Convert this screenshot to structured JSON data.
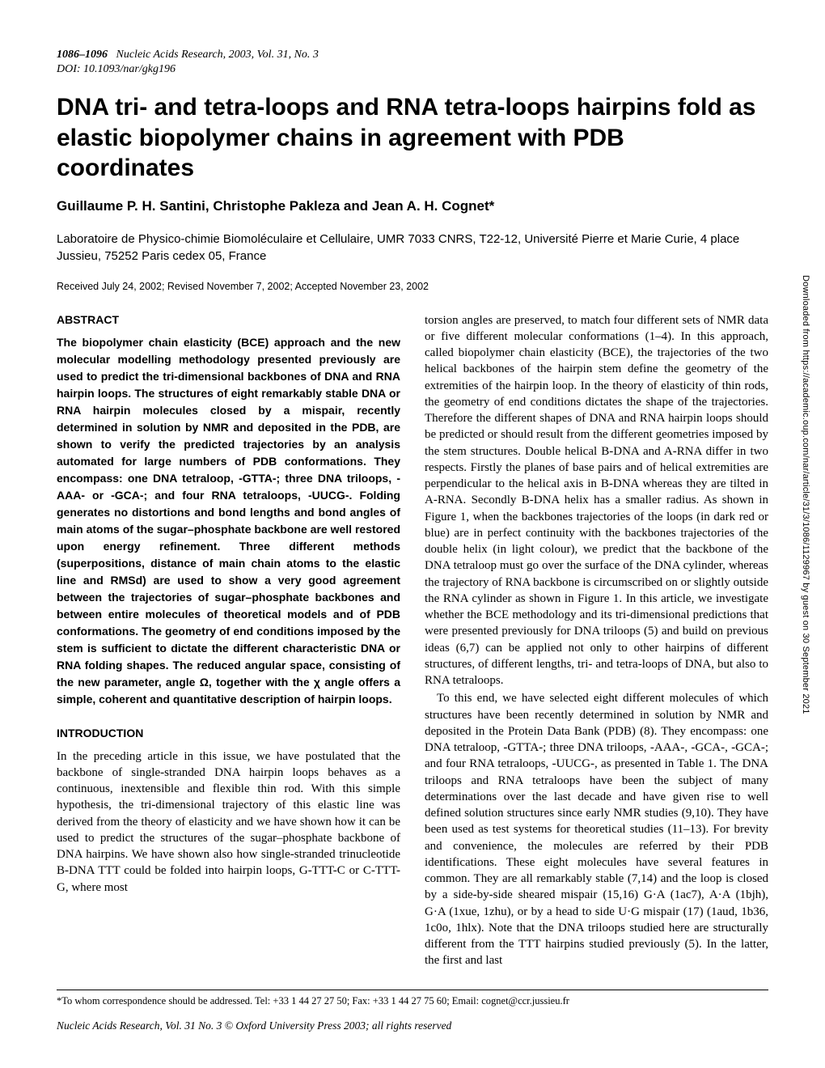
{
  "header": {
    "pages": "1086–1096",
    "journal": "Nucleic Acids Research, 2003, Vol. 31, No. 3",
    "doi": "DOI: 10.1093/nar/gkg196"
  },
  "title": "DNA tri- and tetra-loops and RNA tetra-loops hairpins fold as elastic biopolymer chains in agreement with PDB coordinates",
  "authors": "Guillaume P. H. Santini, Christophe Pakleza and Jean A. H. Cognet*",
  "affiliation": "Laboratoire de Physico-chimie Biomoléculaire et Cellulaire, UMR 7033 CNRS, T22-12, Université Pierre et Marie Curie, 4 place Jussieu, 75252 Paris cedex 05, France",
  "dates": "Received July 24, 2002; Revised November 7, 2002; Accepted November 23, 2002",
  "abstract_heading": "ABSTRACT",
  "abstract_text": "The biopolymer chain elasticity (BCE) approach and the new molecular modelling methodology presented previously are used to predict the tri-dimensional backbones of DNA and RNA hairpin loops. The structures of eight remarkably stable DNA or RNA hairpin molecules closed by a mispair, recently determined in solution by NMR and deposited in the PDB, are shown to verify the predicted trajectories by an analysis automated for large numbers of PDB conformations. They encompass: one DNA tetraloop, -GTTA-; three DNA triloops, -AAA- or -GCA-; and four RNA tetraloops, -UUCG-. Folding generates no distortions and bond lengths and bond angles of main atoms of the sugar–phosphate backbone are well restored upon energy refinement. Three different methods (superpositions, distance of main chain atoms to the elastic line and RMSd) are used to show a very good agreement between the trajectories of sugar–phosphate backbones and between entire molecules of theoretical models and of PDB conformations. The geometry of end conditions imposed by the stem is sufficient to dictate the different characteristic DNA or RNA folding shapes. The reduced angular space, consisting of the new parameter, angle Ω, together with the χ angle offers a simple, coherent and quantitative description of hairpin loops.",
  "intro_heading": "INTRODUCTION",
  "intro_text": "In the preceding article in this issue, we have postulated that the backbone of single-stranded DNA hairpin loops behaves as a continuous, inextensible and flexible thin rod. With this simple hypothesis, the tri-dimensional trajectory of this elastic line was derived from the theory of elasticity and we have shown how it can be used to predict the structures of the sugar–phosphate backbone of DNA hairpins. We have shown also how single-stranded trinucleotide B-DNA TTT could be folded into hairpin loops, G-TTT-C or C-TTT-G, where most",
  "right_col_p1": "torsion angles are preserved, to match four different sets of NMR data or five different molecular conformations (1–4). In this approach, called biopolymer chain elasticity (BCE), the trajectories of the two helical backbones of the hairpin stem define the geometry of the extremities of the hairpin loop. In the theory of elasticity of thin rods, the geometry of end conditions dictates the shape of the trajectories. Therefore the different shapes of DNA and RNA hairpin loops should be predicted or should result from the different geometries imposed by the stem structures. Double helical B-DNA and A-RNA differ in two respects. Firstly the planes of base pairs and of helical extremities are perpendicular to the helical axis in B-DNA whereas they are tilted in A-RNA. Secondly B-DNA helix has a smaller radius. As shown in Figure 1, when the backbones trajectories of the loops (in dark red or blue) are in perfect continuity with the backbones trajectories of the double helix (in light colour), we predict that the backbone of the DNA tetraloop must go over the surface of the DNA cylinder, whereas the trajectory of RNA backbone is circumscribed on or slightly outside the RNA cylinder as shown in Figure 1. In this article, we investigate whether the BCE methodology and its tri-dimensional predictions that were presented previously for DNA triloops (5) and build on previous ideas (6,7) can be applied not only to other hairpins of different structures, of different lengths, tri- and tetra-loops of DNA, but also to RNA tetraloops.",
  "right_col_p2": "To this end, we have selected eight different molecules of which structures have been recently determined in solution by NMR and deposited in the Protein Data Bank (PDB) (8). They encompass: one DNA tetraloop, -GTTA-; three DNA triloops, -AAA-, -GCA-, -GCA-; and four RNA tetraloops, -UUCG-, as presented in Table 1. The DNA triloops and RNA tetraloops have been the subject of many determinations over the last decade and have given rise to well defined solution structures since early NMR studies (9,10). They have been used as test systems for theoretical studies (11–13). For brevity and convenience, the molecules are referred by their PDB identifications. These eight molecules have several features in common. They are all remarkably stable (7,14) and the loop is closed by a side-by-side sheared mispair (15,16) G·A (1ac7), A·A (1bjh), G·A (1xue, 1zhu), or by a head to side U·G mispair (17) (1aud, 1b36, 1c0o, 1hlx). Note that the DNA triloops studied here are structurally different from the TTT hairpins studied previously (5). In the latter, the first and last",
  "footnote": "*To whom correspondence should be addressed. Tel: +33 1 44 27 27 50; Fax: +33 1 44 27 75 60; Email: cognet@ccr.jussieu.fr",
  "bottom_line": "Nucleic Acids Research, Vol. 31 No. 3 © Oxford University Press 2003; all rights reserved",
  "side_text": "Downloaded from https://academic.oup.com/nar/article/31/3/1086/1129967 by guest on 30 September 2021",
  "colors": {
    "background": "#ffffff",
    "text": "#000000"
  },
  "fonts": {
    "serif": "Times New Roman",
    "sans": "Arial"
  }
}
